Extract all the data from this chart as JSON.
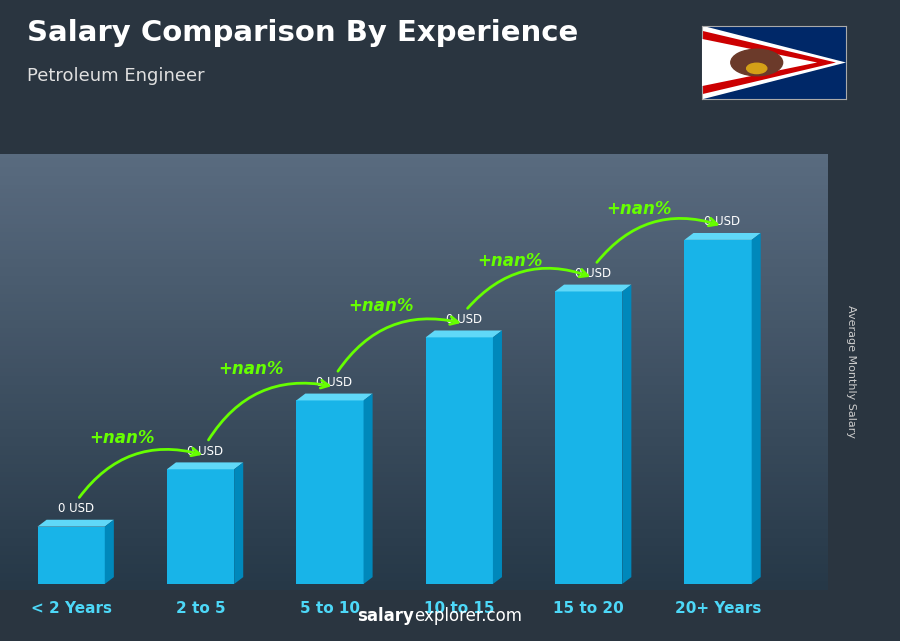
{
  "title": "Salary Comparison By Experience",
  "subtitle": "Petroleum Engineer",
  "categories": [
    "< 2 Years",
    "2 to 5",
    "5 to 10",
    "10 to 15",
    "15 to 20",
    "20+ Years"
  ],
  "bar_heights": [
    1.0,
    2.0,
    3.2,
    4.3,
    5.1,
    6.0
  ],
  "bar_color_front": "#18b4e8",
  "bar_color_top": "#60d8f8",
  "bar_color_side": "#0088bb",
  "value_labels": [
    "0 USD",
    "0 USD",
    "0 USD",
    "0 USD",
    "0 USD",
    "0 USD"
  ],
  "pct_labels": [
    "+nan%",
    "+nan%",
    "+nan%",
    "+nan%",
    "+nan%"
  ],
  "ylabel": "Average Monthly Salary",
  "footer_bold": "salary",
  "footer_normal": "explorer.com",
  "bg_top_color": "#4a5a6a",
  "bg_bottom_color": "#2a3540",
  "title_color": "#ffffff",
  "subtitle_color": "#e0e0e0",
  "xlabel_color": "#4dd8f8",
  "value_label_color": "#ffffff",
  "pct_label_color": "#66ff00",
  "arrow_color": "#66ff00",
  "ylabel_color": "#cccccc",
  "footer_color": "#ffffff"
}
